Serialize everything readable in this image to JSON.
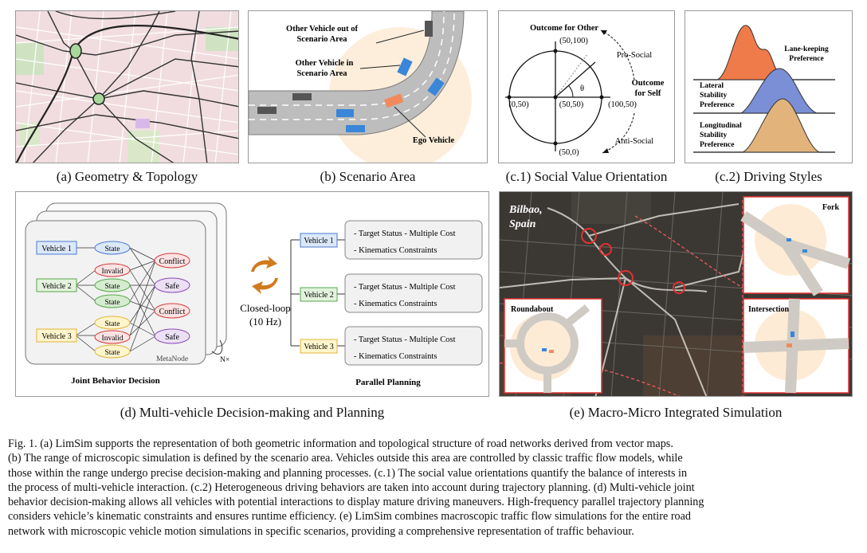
{
  "panels": {
    "a": {
      "caption": "(a) Geometry & Topology"
    },
    "b": {
      "caption": "(b) Scenario Area",
      "labels": {
        "out_area_1": "Other Vehicle out of",
        "out_area_2": "Scenario Area",
        "in_area_1": "Other Vehicle in",
        "in_area_2": "Scenario Area",
        "ego": "Ego Vehicle"
      }
    },
    "c1": {
      "caption": "(c.1) Social Value Orientation",
      "labels": {
        "outcome_other": "Outcome for Other",
        "outcome_self_1": "Outcome",
        "outcome_self_2": "for Self",
        "top": "(50,100)",
        "left": "(0,50)",
        "center": "(50,50)",
        "right": "(100,50)",
        "bottom": "(50,0)",
        "theta": "θ",
        "pro_social": "Pro-Social",
        "anti_social": "Anti-Social"
      }
    },
    "c2": {
      "caption": "(c.2) Driving Styles",
      "labels": {
        "lk_1": "Lane-keeping",
        "lk_2": "Preference",
        "lat_1": "Lateral",
        "lat_2": "Stability",
        "lat_3": "Preference",
        "lon_1": "Longitudinal",
        "lon_2": "Stability",
        "lon_3": "Preference"
      },
      "colors": {
        "orange": "#ef7a4a",
        "blue": "#7a8fd6",
        "tan": "#e2b47c"
      }
    },
    "d": {
      "caption": "(d) Multi-vehicle Decision-making and Planning",
      "vehicles": [
        "Vehicle 1",
        "Vehicle 2",
        "Vehicle 3"
      ],
      "nodes": {
        "state": "State",
        "invalid": "Invalid",
        "conflict": "Conflict",
        "safe": "Safe"
      },
      "metanode": "MetaNode",
      "nx": "N×",
      "closed_loop_1": "Closed-loop",
      "closed_loop_2": "(10 Hz)",
      "plan_line_1": "- Target Status - Multiple Cost",
      "plan_line_2": "- Kinematics Constraints",
      "joint_title": "Joint Behavior Decision",
      "parallel_title": "Parallel Planning"
    },
    "e": {
      "caption": "(e) Macro-Micro Integrated Simulation",
      "city_1": "Bilbao,",
      "city_2": "Spain",
      "insets": {
        "fork": "Fork",
        "roundabout": "Roundabout",
        "intersection": "Intersection"
      }
    }
  },
  "figure_caption": [
    "Fig. 1.    (a) LimSim supports the representation of both geometric information and topological structure of road networks derived from vector maps.",
    "(b) The range of microscopic simulation is defined by the scenario area. Vehicles outside this area are controlled by classic traffic flow models, while",
    "those within the range undergo precise decision-making and planning processes. (c.1) The social value orientations quantify the balance of interests in",
    "the process of multi-vehicle interaction. (c.2) Heterogeneous driving behaviors are taken into account during trajectory planning. (d) Multi-vehicle joint",
    "behavior decision-making allows all vehicles with potential interactions to display mature driving maneuvers. High-frequency parallel trajectory planning",
    "considers vehicle’s kinematic constraints and ensures runtime efficiency. (e) LimSim combines macroscopic traffic flow simulations for the entire road",
    "network with microscopic vehicle motion simulations in specific scenarios, providing a comprehensive representation of traffic behaviour."
  ]
}
